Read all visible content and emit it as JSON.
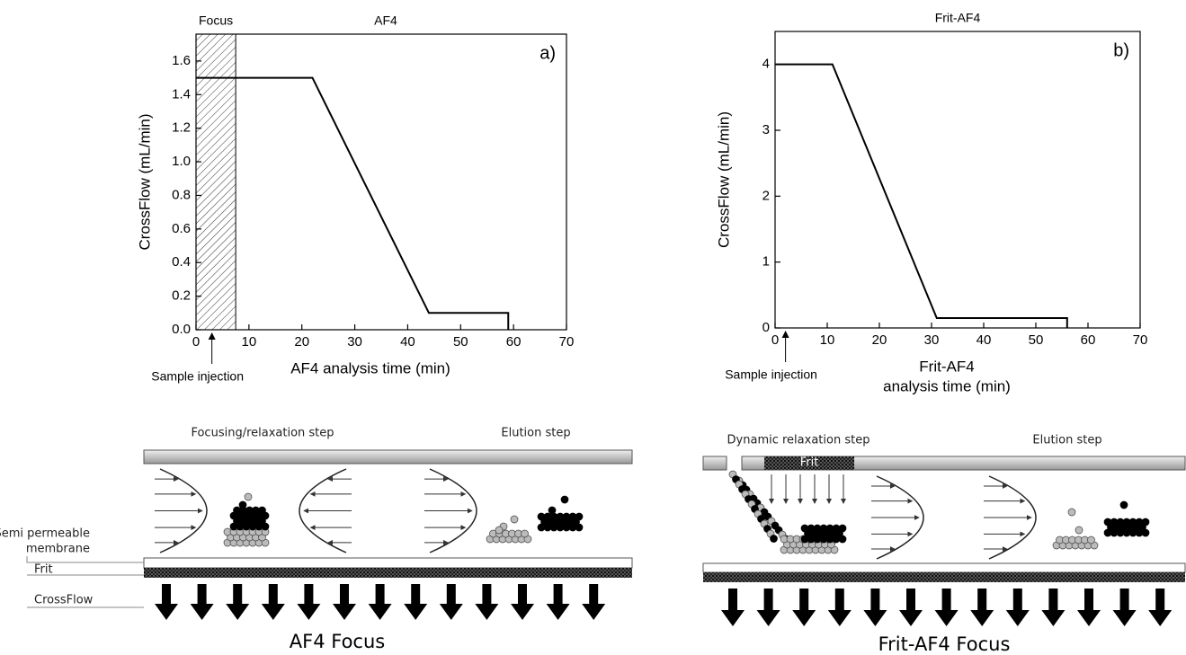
{
  "chart_data": [
    {
      "type": "line",
      "panel_label": "a)",
      "title": "AF4",
      "xlabel": [
        "AF4 analysis time (min)"
      ],
      "ylabel": "CrossFlow (mL/min)",
      "x": [
        0,
        22,
        44,
        59,
        59
      ],
      "series": [
        {
          "color": "#000000",
          "values": [
            1.5,
            1.5,
            0.1,
            0.1,
            0
          ]
        }
      ],
      "xlim": [
        0,
        70
      ],
      "ylim": [
        0,
        1.76
      ],
      "xticks": [
        0,
        10,
        20,
        30,
        40,
        50,
        60,
        70
      ],
      "yticks": [
        {
          "value": 0,
          "label": "0.0"
        },
        0.2,
        0.4,
        0.6,
        0.8,
        {
          "value": 1,
          "label": "1.0"
        },
        1.2,
        1.4,
        1.6
      ],
      "shaded_region": {
        "label": "Focus",
        "x": [
          0,
          7.5
        ]
      },
      "annotation": {
        "text": "Sample injection",
        "x": 3
      }
    },
    {
      "type": "line",
      "panel_label": "b)",
      "title": "Frit-AF4",
      "xlabel": [
        "Frit-AF4",
        "analysis time (min)"
      ],
      "ylabel": "CrossFlow (mL/min)",
      "x": [
        0,
        11,
        31,
        56,
        56
      ],
      "series": [
        {
          "color": "#000000",
          "values": [
            4,
            4,
            0.15,
            0.15,
            0
          ]
        }
      ],
      "xlim": [
        0,
        70
      ],
      "ylim": [
        0,
        4.5
      ],
      "xticks": [
        0,
        10,
        20,
        30,
        40,
        50,
        60,
        70
      ],
      "yticks": [
        0,
        1,
        2,
        3,
        4
      ],
      "annotation": {
        "text": "Sample injection",
        "x": 2
      }
    }
  ],
  "diagrams": [
    {
      "steps": [
        "Focusing/relaxation step",
        "Elution step"
      ],
      "membrane": [
        "Semi permeable",
        "membrane"
      ],
      "frit": "Frit",
      "crossflow": "CrossFlow",
      "title": "AF4 Focus"
    },
    {
      "steps": [
        "Dynamic relaxation step",
        "Elution step"
      ],
      "frit": "Frit",
      "title": "Frit-AF4 Focus"
    }
  ]
}
